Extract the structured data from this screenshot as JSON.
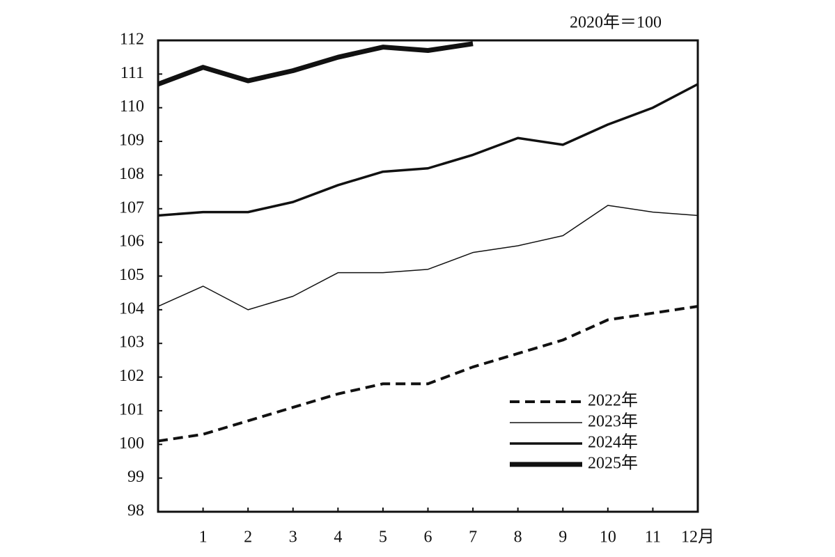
{
  "chart_data": {
    "type": "line",
    "annotation": "2020年＝100",
    "categories": [
      null,
      "1",
      "2",
      "3",
      "4",
      "5",
      "6",
      "7",
      "8",
      "9",
      "10",
      "11",
      "12月"
    ],
    "series": [
      {
        "name": "2022年",
        "color": "#111111",
        "width": 4,
        "dashed": true,
        "values": [
          100.1,
          100.3,
          100.7,
          101.1,
          101.5,
          101.8,
          101.8,
          102.3,
          102.7,
          103.1,
          103.7,
          103.9,
          104.1
        ]
      },
      {
        "name": "2023年",
        "color": "#111111",
        "width": 1.5,
        "dashed": false,
        "values": [
          104.1,
          104.7,
          104.0,
          104.4,
          105.1,
          105.1,
          105.2,
          105.7,
          105.9,
          106.2,
          107.1,
          106.9,
          106.8
        ]
      },
      {
        "name": "2024年",
        "color": "#111111",
        "width": 3.5,
        "dashed": false,
        "values": [
          106.8,
          106.9,
          106.9,
          107.2,
          107.7,
          108.1,
          108.2,
          108.6,
          109.1,
          108.9,
          109.5,
          110.0,
          110.7
        ]
      },
      {
        "name": "2025年",
        "color": "#111111",
        "width": 7,
        "dashed": false,
        "values": [
          110.7,
          111.2,
          110.8,
          111.1,
          111.5,
          111.8,
          111.7,
          111.9,
          null,
          null,
          null,
          null,
          null
        ]
      }
    ],
    "ylim": [
      98,
      112
    ],
    "yticks": [
      98,
      99,
      100,
      101,
      102,
      103,
      104,
      105,
      106,
      107,
      108,
      109,
      110,
      111,
      112
    ],
    "legend": "lower right"
  }
}
